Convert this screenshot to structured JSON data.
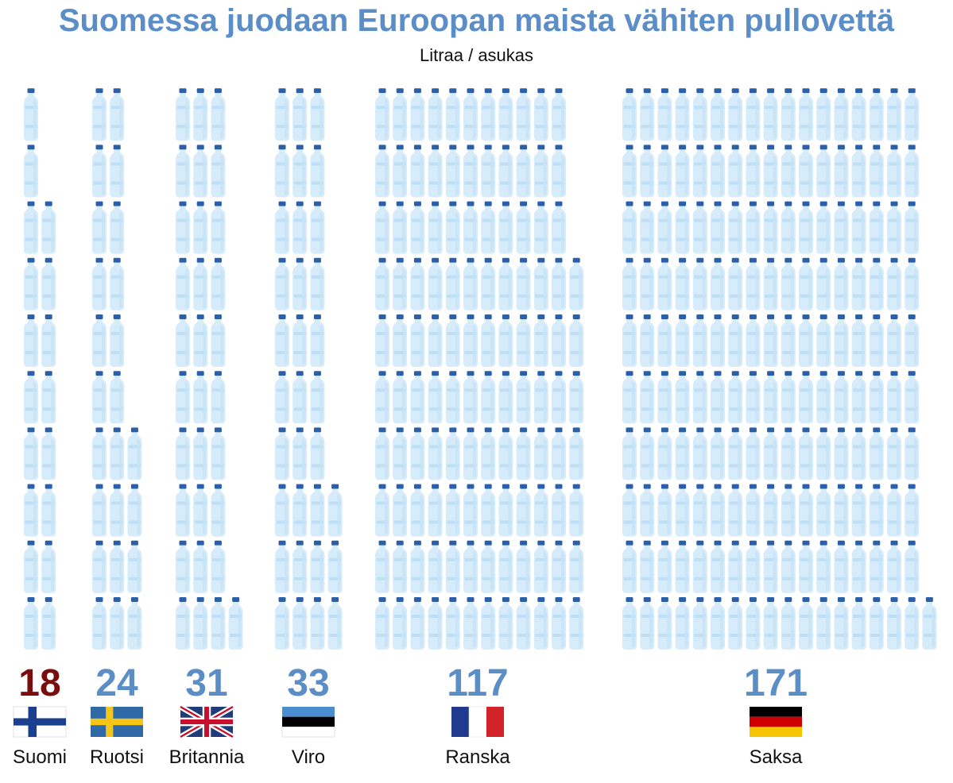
{
  "title": "Suomessa juodaan Euroopan maista vähiten pullovettä",
  "subtitle": "Litraa / asukas",
  "colors": {
    "title": "#5b8dc6",
    "value_default": "#5b8dc6",
    "value_highlight": "#7a0e0e",
    "bottle_body": "#d6ecfa",
    "bottle_shade": "#bedff5",
    "bottle_cap": "#2b5fa8"
  },
  "chart_data": {
    "type": "pictogram",
    "unit_per_icon": 1,
    "categories": [
      "Suomi",
      "Ruotsi",
      "Britannia",
      "Viro",
      "Ranska",
      "Saksa"
    ],
    "values": [
      18,
      24,
      31,
      33,
      117,
      171
    ],
    "highlight": "Suomi",
    "flags": [
      "finland-flag",
      "sweden-flag",
      "uk-flag",
      "estonia-flag",
      "france-flag",
      "germany-flag"
    ]
  }
}
